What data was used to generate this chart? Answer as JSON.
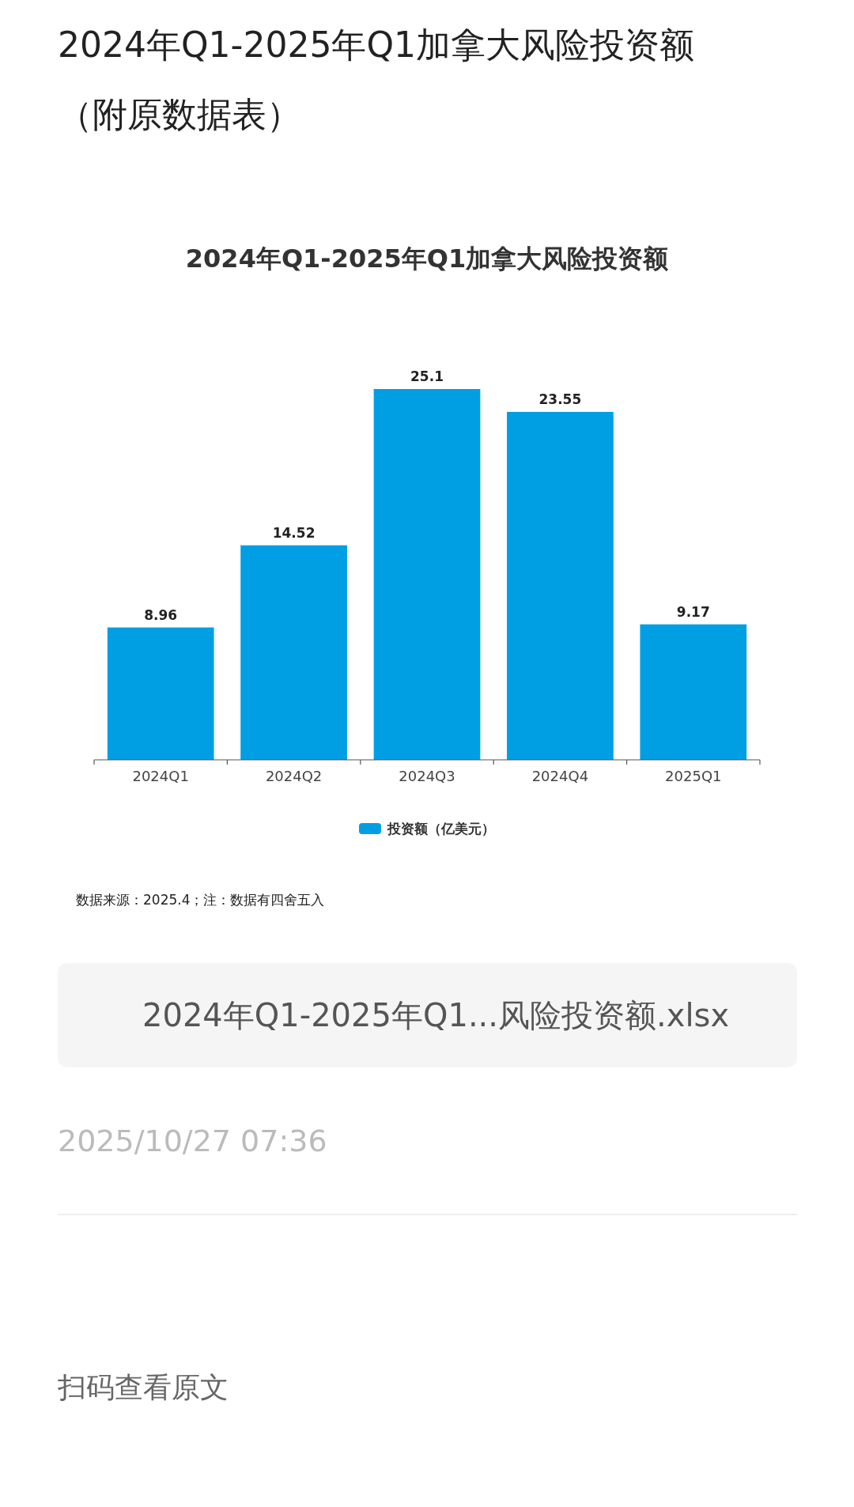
{
  "chart_data": {
    "type": "bar",
    "title": "2024年Q1-2025年Q1加拿大风险投资额",
    "categories": [
      "2024Q1",
      "2024Q2",
      "2024Q3",
      "2024Q4",
      "2025Q1"
    ],
    "series": [
      {
        "name": "投资额（亿美元）",
        "color": "#009fe3",
        "values": [
          8.96,
          14.52,
          25.1,
          23.55,
          9.17
        ]
      }
    ],
    "data_labels": true,
    "legend": "bottom",
    "annotations": [
      "2024年Q1-2025年Q1加拿大风险投资额（附原数据表）",
      "数据来源：2025.4；注：数据有四舍五入",
      "2024年Q1-2025年Q1...风险投资额.xlsx",
      "2025/10/27 07:36",
      "扫码查看原文"
    ]
  }
}
